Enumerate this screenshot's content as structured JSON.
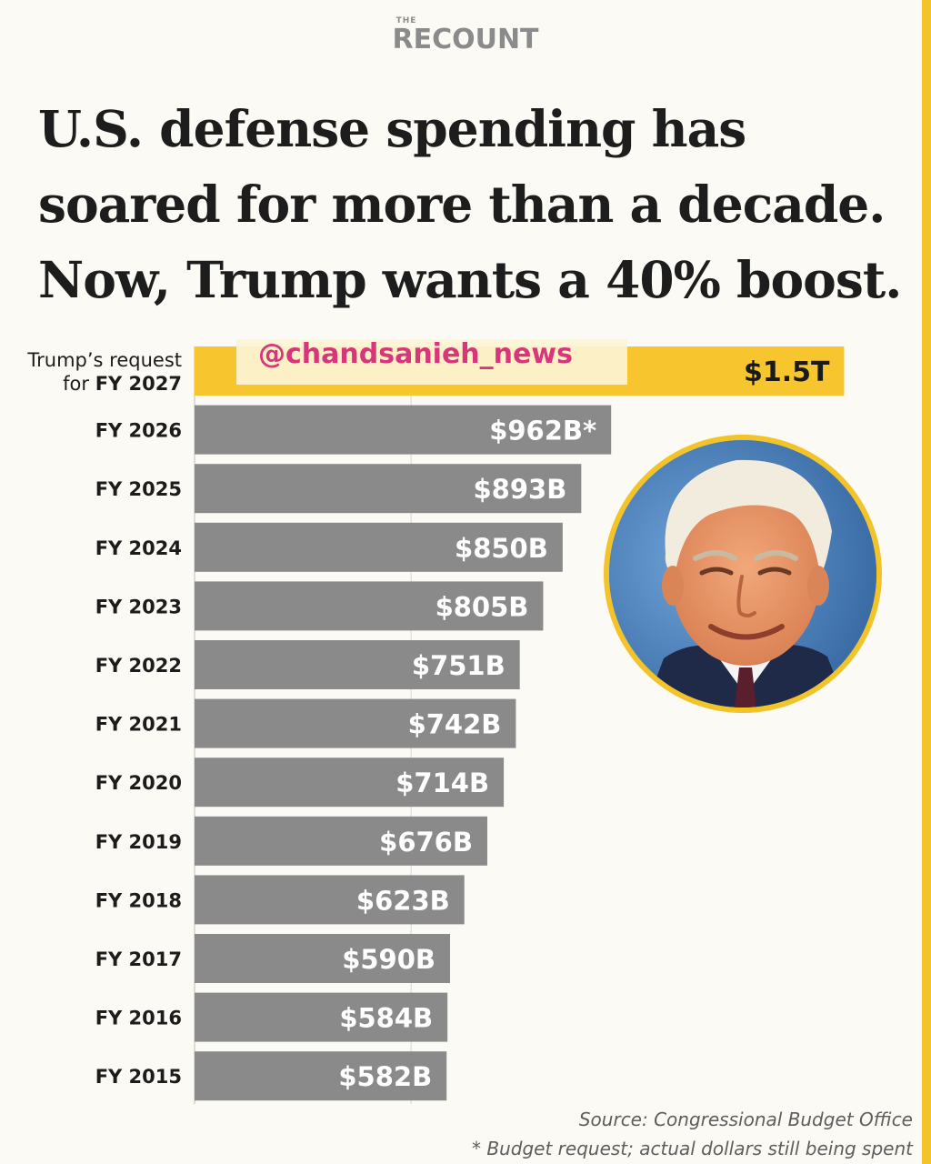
{
  "brand": {
    "small": "THE",
    "main": "RECOUNT"
  },
  "headline": [
    "U.S. defense spending has",
    "soared for more than a decade.",
    "Now, Trump wants a 40% boost."
  ],
  "watermark": "@chandsanieh_news",
  "colors": {
    "accent": "#f3c32a",
    "bar": "#8a8a8a",
    "highlight_bar": "#f7c62f",
    "watermark_text": "#d8367a"
  },
  "portrait": {
    "icon": "portrait-photo"
  },
  "chart_data": {
    "type": "bar",
    "orientation": "horizontal",
    "title": "U.S. defense spending has soared for more than a decade. Now, Trump wants a 40% boost.",
    "unit": "USD billions",
    "categories": [
      "FY 2027",
      "FY 2026",
      "FY 2025",
      "FY 2024",
      "FY 2023",
      "FY 2022",
      "FY 2021",
      "FY 2020",
      "FY 2019",
      "FY 2018",
      "FY 2017",
      "FY 2016",
      "FY 2015"
    ],
    "category_labels": [
      {
        "line1": "Trump’s request",
        "line2_prefix": "for ",
        "line2_bold": "FY 2027"
      },
      {
        "text": "FY 2026"
      },
      {
        "text": "FY 2025"
      },
      {
        "text": "FY 2024"
      },
      {
        "text": "FY 2023"
      },
      {
        "text": "FY 2022"
      },
      {
        "text": "FY 2021"
      },
      {
        "text": "FY 2020"
      },
      {
        "text": "FY 2019"
      },
      {
        "text": "FY 2018"
      },
      {
        "text": "FY 2017"
      },
      {
        "text": "FY 2016"
      },
      {
        "text": "FY 2015"
      }
    ],
    "values": [
      1500,
      962,
      893,
      850,
      805,
      751,
      742,
      714,
      676,
      623,
      590,
      584,
      582
    ],
    "data_labels": [
      "$1.5T",
      "$962B*",
      "$893B",
      "$850B",
      "$805B",
      "$751B",
      "$742B",
      "$714B",
      "$676B",
      "$623B",
      "$590B",
      "$584B",
      "$582B"
    ],
    "highlight_index": 0,
    "grid": true,
    "xlim": [
      0,
      1500
    ]
  },
  "source": {
    "line1": "Source: Congressional Budget Office",
    "line2": "* Budget request; actual dollars still being spent"
  }
}
